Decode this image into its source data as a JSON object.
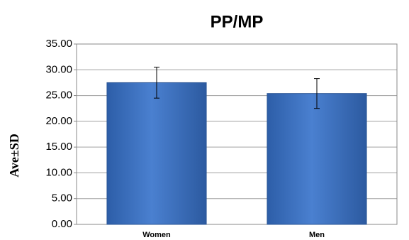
{
  "chart_data": {
    "type": "bar",
    "title": "PP/MP",
    "y_label": "Ave±SD",
    "categories": [
      "Women",
      "Men"
    ],
    "values": [
      27.5,
      25.4
    ],
    "errors": [
      3.0,
      2.9
    ],
    "color": "#3f74c4",
    "ylim": [
      0,
      35
    ],
    "yticks": [
      {
        "value": 0,
        "label": "0.00"
      },
      {
        "value": 5,
        "label": "5.00"
      },
      {
        "value": 10,
        "label": "10.00"
      },
      {
        "value": 15,
        "label": "15.00"
      },
      {
        "value": 20,
        "label": "20.00"
      },
      {
        "value": 25,
        "label": "25.00"
      },
      {
        "value": 30,
        "label": "30.00"
      },
      {
        "value": 35,
        "label": "35.00"
      }
    ],
    "grid": true
  }
}
